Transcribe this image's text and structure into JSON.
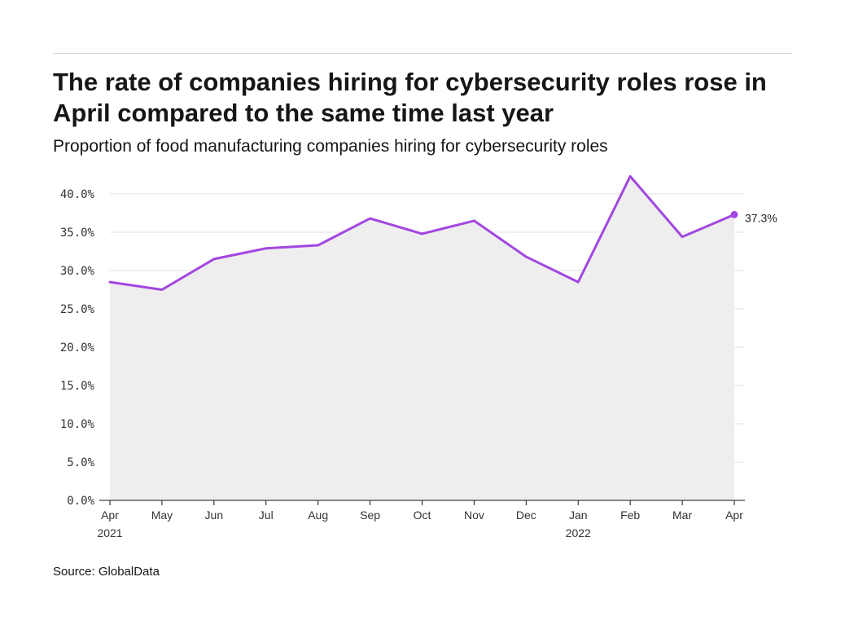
{
  "header": {
    "title": "The rate of companies hiring for cybersecurity roles rose in April compared to the same time last year",
    "subtitle": "Proportion of food manufacturing companies hiring for cybersecurity roles"
  },
  "footer": {
    "source": "Source: GlobalData"
  },
  "colors": {
    "line": "#a247e0",
    "area": "#eeeeee",
    "grid": "#e0e0e0",
    "axis": "#161616"
  },
  "chart_data": {
    "type": "area",
    "title": "The rate of companies hiring for cybersecurity roles rose in April compared to the same time last year",
    "subtitle": "Proportion of food manufacturing companies hiring for cybersecurity roles",
    "categories": [
      "Apr",
      "May",
      "Jun",
      "Jul",
      "Aug",
      "Sep",
      "Oct",
      "Nov",
      "Dec",
      "Jan",
      "Feb",
      "Mar",
      "Apr"
    ],
    "year_labels": [
      "2021",
      "",
      "",
      "",
      "",
      "",
      "",
      "",
      "",
      "2022",
      "",
      "",
      ""
    ],
    "values": [
      28.5,
      27.5,
      31.5,
      32.9,
      33.3,
      36.8,
      34.8,
      36.5,
      31.8,
      28.5,
      42.3,
      34.4,
      37.3
    ],
    "end_label": "37.3%",
    "ylim": [
      0,
      40
    ],
    "yticks": [
      0,
      5,
      10,
      15,
      20,
      25,
      30,
      35,
      40
    ],
    "ytick_labels": [
      "0.0%",
      "5.0%",
      "10.0%",
      "15.0%",
      "20.0%",
      "25.0%",
      "30.0%",
      "35.0%",
      "40.0%"
    ],
    "grid": true,
    "legend": "none"
  }
}
